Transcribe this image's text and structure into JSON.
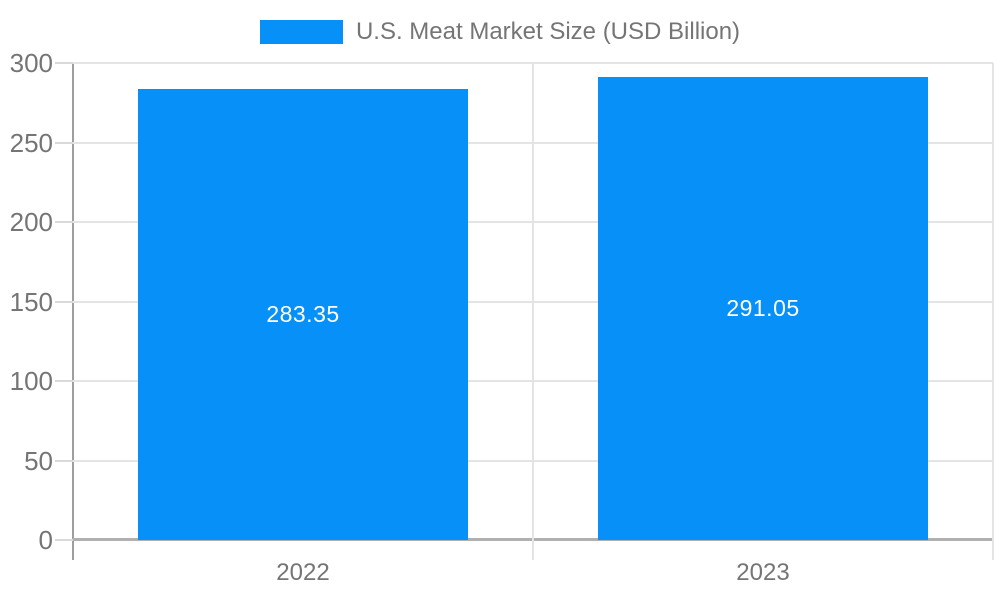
{
  "legend": {
    "label": "U.S. Meat Market Size (USD Billion)",
    "swatch_color": "#0690f8"
  },
  "chart_data": {
    "type": "bar",
    "title": "U.S. Meat Market Size (USD Billion)",
    "categories": [
      "2022",
      "2023"
    ],
    "series": [
      {
        "name": "U.S. Meat Market Size (USD Billion)",
        "values": [
          283.35,
          291.05
        ],
        "color": "#0690f8"
      }
    ],
    "data_labels": [
      "283.35",
      "291.05"
    ],
    "xlabel": "",
    "ylabel": "",
    "ylim": [
      0,
      300
    ],
    "y_ticks": [
      0,
      50,
      100,
      150,
      200,
      250,
      300
    ],
    "grid": true,
    "legend_position": "top",
    "colors": {
      "bar": "#0690f8",
      "gridline": "#e4e4e4",
      "tick_mark": "#d9d9d9",
      "y_axis_line": "#9e9e9e",
      "x_axis_line": "#b0b0b0",
      "tick_text": "#757575",
      "data_label_text": "#ffffff",
      "background": "#ffffff"
    }
  }
}
